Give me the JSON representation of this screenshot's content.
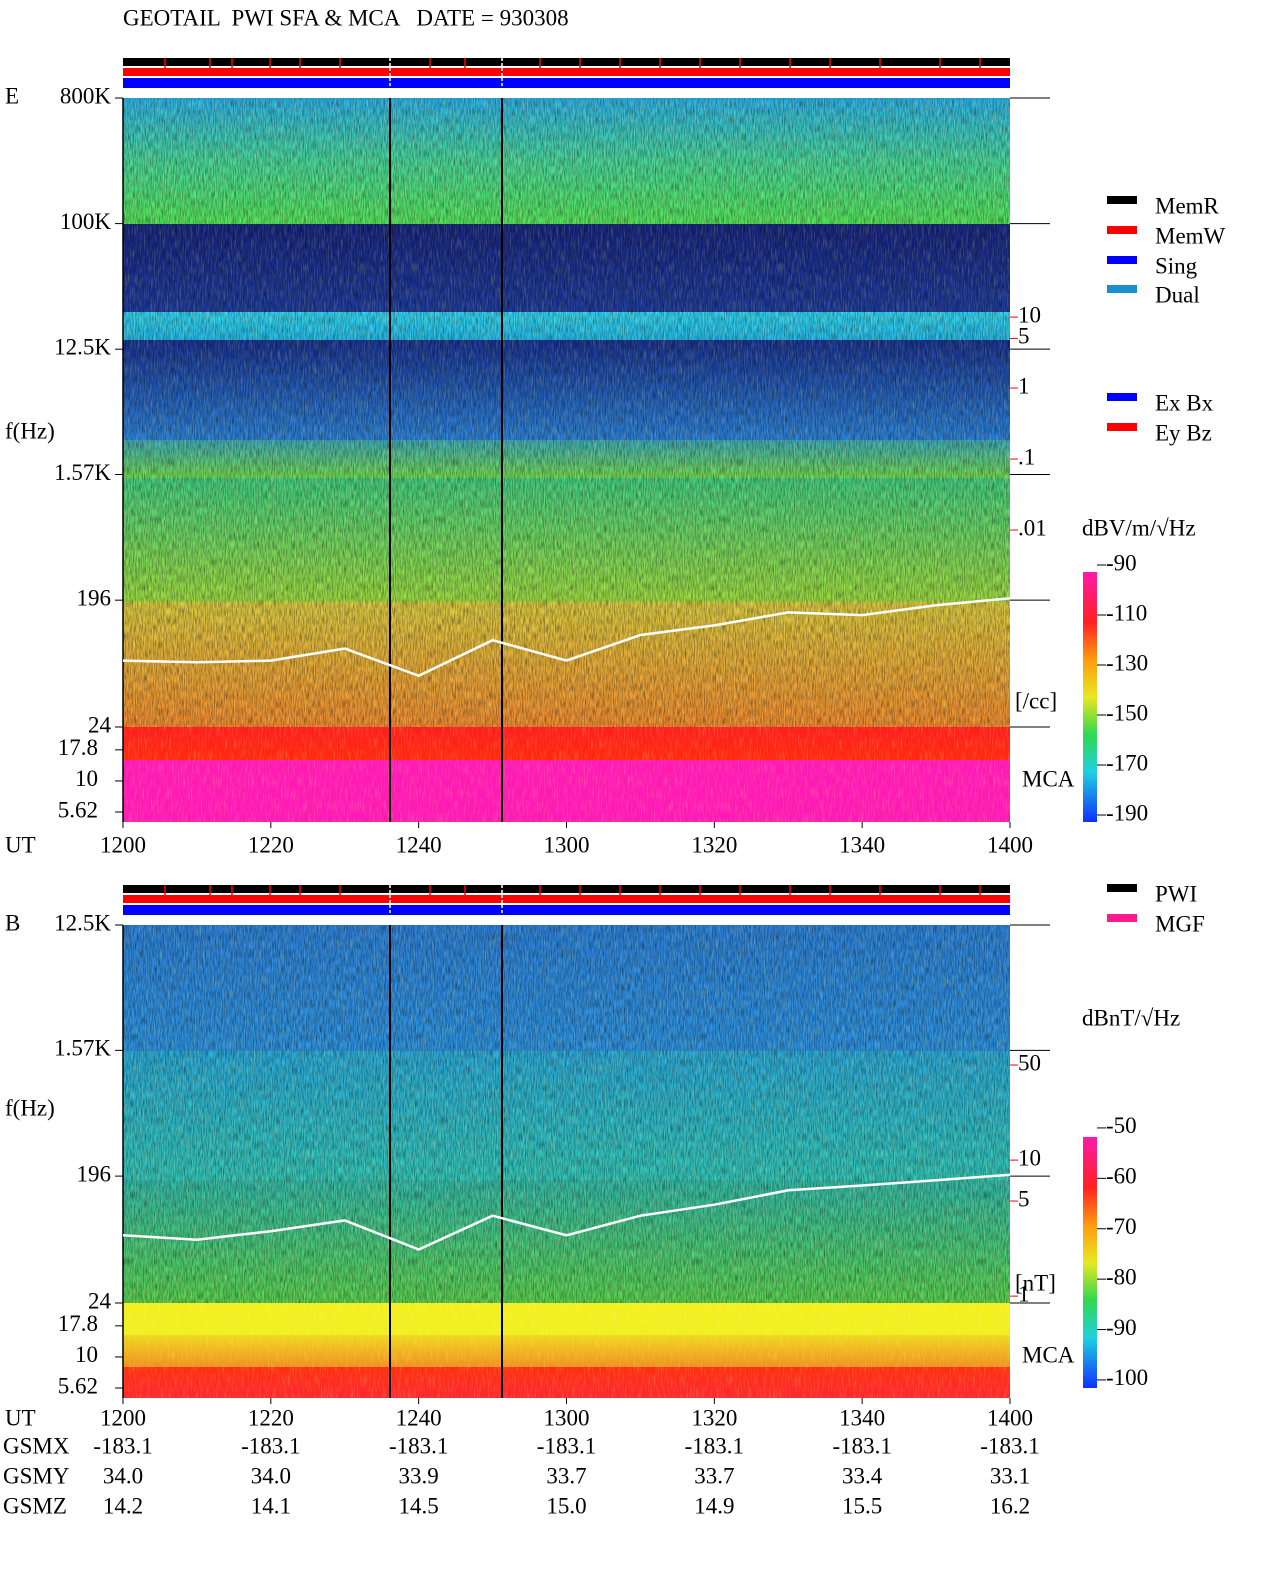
{
  "title": "GEOTAIL  PWI SFA & MCA   DATE = 930308",
  "chart_data": [
    {
      "type": "spectrogram",
      "panel_label": "E",
      "y_label": "f(Hz)",
      "x_label": "UT",
      "mca_label": "MCA",
      "ylog": true,
      "ylim": [
        24,
        800000
      ],
      "yticks": [
        {
          "value": 800000,
          "label": "800K"
        },
        {
          "value": 100000,
          "label": "100K"
        },
        {
          "value": 12500,
          "label": "12.5K"
        },
        {
          "value": 1570,
          "label": "1.57K"
        },
        196,
        24
      ],
      "mca_ylim": [
        4.67,
        27.2
      ],
      "mca_yticks": [
        17.8,
        10,
        5.62
      ],
      "xlim": [
        "1200",
        "1400"
      ],
      "xticks": [
        "1200",
        "1220",
        "1240",
        "1300",
        "1320",
        "1340",
        "1400"
      ],
      "y2log": true,
      "y2lim": [
        1.68e-05,
        12200
      ],
      "y2ticks": [
        10,
        5,
        1,
        {
          "value": 0.1,
          "label": ".1"
        },
        {
          "value": 0.01,
          "label": ".01"
        }
      ],
      "y2_label": "[/cc]",
      "y2_color": "#ff0000",
      "trace": {
        "color": "#ffffff",
        "axis": "y",
        "x": [
          "1200",
          "1210",
          "1220",
          "1230",
          "1240",
          "1250",
          "1300",
          "1310",
          "1320",
          "1330",
          "1340",
          "1350",
          "1400"
        ],
        "values": [
          72,
          70,
          72,
          88,
          56,
          101,
          72,
          110,
          129,
          160,
          153,
          180,
          202
        ]
      },
      "legend": [
        {
          "name": "MemR",
          "color": "#000000"
        },
        {
          "name": "MemW",
          "color": "#ff0000"
        },
        {
          "name": "Sing",
          "color": "#0000ff"
        },
        {
          "name": "Dual",
          "color": "#1a8fd0"
        }
      ],
      "legend2": [
        {
          "name": "Ex Bx",
          "color": "#0000ff"
        },
        {
          "name": "Ey Bz",
          "color": "#ff0000"
        }
      ],
      "colorbar": {
        "label": "dBV/m/√Hz",
        "clim": [
          -192.8,
          -92.8
        ],
        "ticks": [
          -90,
          -110,
          -130,
          -150,
          -170,
          -190
        ]
      }
    },
    {
      "type": "spectrogram",
      "panel_label": "B",
      "y_label": "f(Hz)",
      "x_label": "UT",
      "mca_label": "MCA",
      "ylog": true,
      "ylim": [
        24,
        12500
      ],
      "yticks": [
        {
          "value": 12500,
          "label": "12.5K"
        },
        {
          "value": 1570,
          "label": "1.57K"
        },
        196,
        24
      ],
      "mca_ylim": [
        4.67,
        27.2
      ],
      "mca_yticks": [
        17.8,
        10,
        5.62
      ],
      "xlim": [
        "1200",
        "1400"
      ],
      "xticks": [
        "1200",
        "1220",
        "1240",
        "1300",
        "1320",
        "1340",
        "1400"
      ],
      "y2log": true,
      "y2lim": [
        0.89,
        535
      ],
      "y2ticks": [
        50,
        10,
        5,
        1
      ],
      "y2_label": "[nT]",
      "y2_color": "#ff0000",
      "trace": {
        "color": "#ffffff",
        "axis": "y2",
        "x": [
          "1200",
          "1210",
          "1220",
          "1230",
          "1240",
          "1250",
          "1300",
          "1310",
          "1320",
          "1330",
          "1340",
          "1350",
          "1400"
        ],
        "values": [
          2.8,
          2.6,
          3.0,
          3.6,
          2.2,
          3.9,
          2.8,
          3.9,
          4.7,
          6.0,
          6.5,
          7.1,
          7.8
        ]
      },
      "legend": [
        {
          "name": "PWI",
          "color": "#000000"
        },
        {
          "name": "MGF",
          "color": "#ff1a8c"
        }
      ],
      "legend2": [],
      "colorbar": {
        "label": "dBnT/√Hz",
        "clim": [
          -101.6,
          -51.8
        ],
        "ticks": [
          -50,
          -60,
          -70,
          -80,
          -90,
          -100
        ]
      }
    }
  ],
  "orbit": {
    "rows": [
      {
        "name": "GSMX",
        "values": [
          "-183.1",
          "-183.1",
          "-183.1",
          "-183.1",
          "-183.1",
          "-183.1",
          "-183.1"
        ]
      },
      {
        "name": "GSMY",
        "values": [
          "34.0",
          "34.0",
          "33.9",
          "33.7",
          "33.7",
          "33.4",
          "33.1"
        ]
      },
      {
        "name": "GSMZ",
        "values": [
          "14.2",
          "14.1",
          "14.5",
          "15.0",
          "14.9",
          "15.5",
          "16.2"
        ]
      }
    ]
  }
}
